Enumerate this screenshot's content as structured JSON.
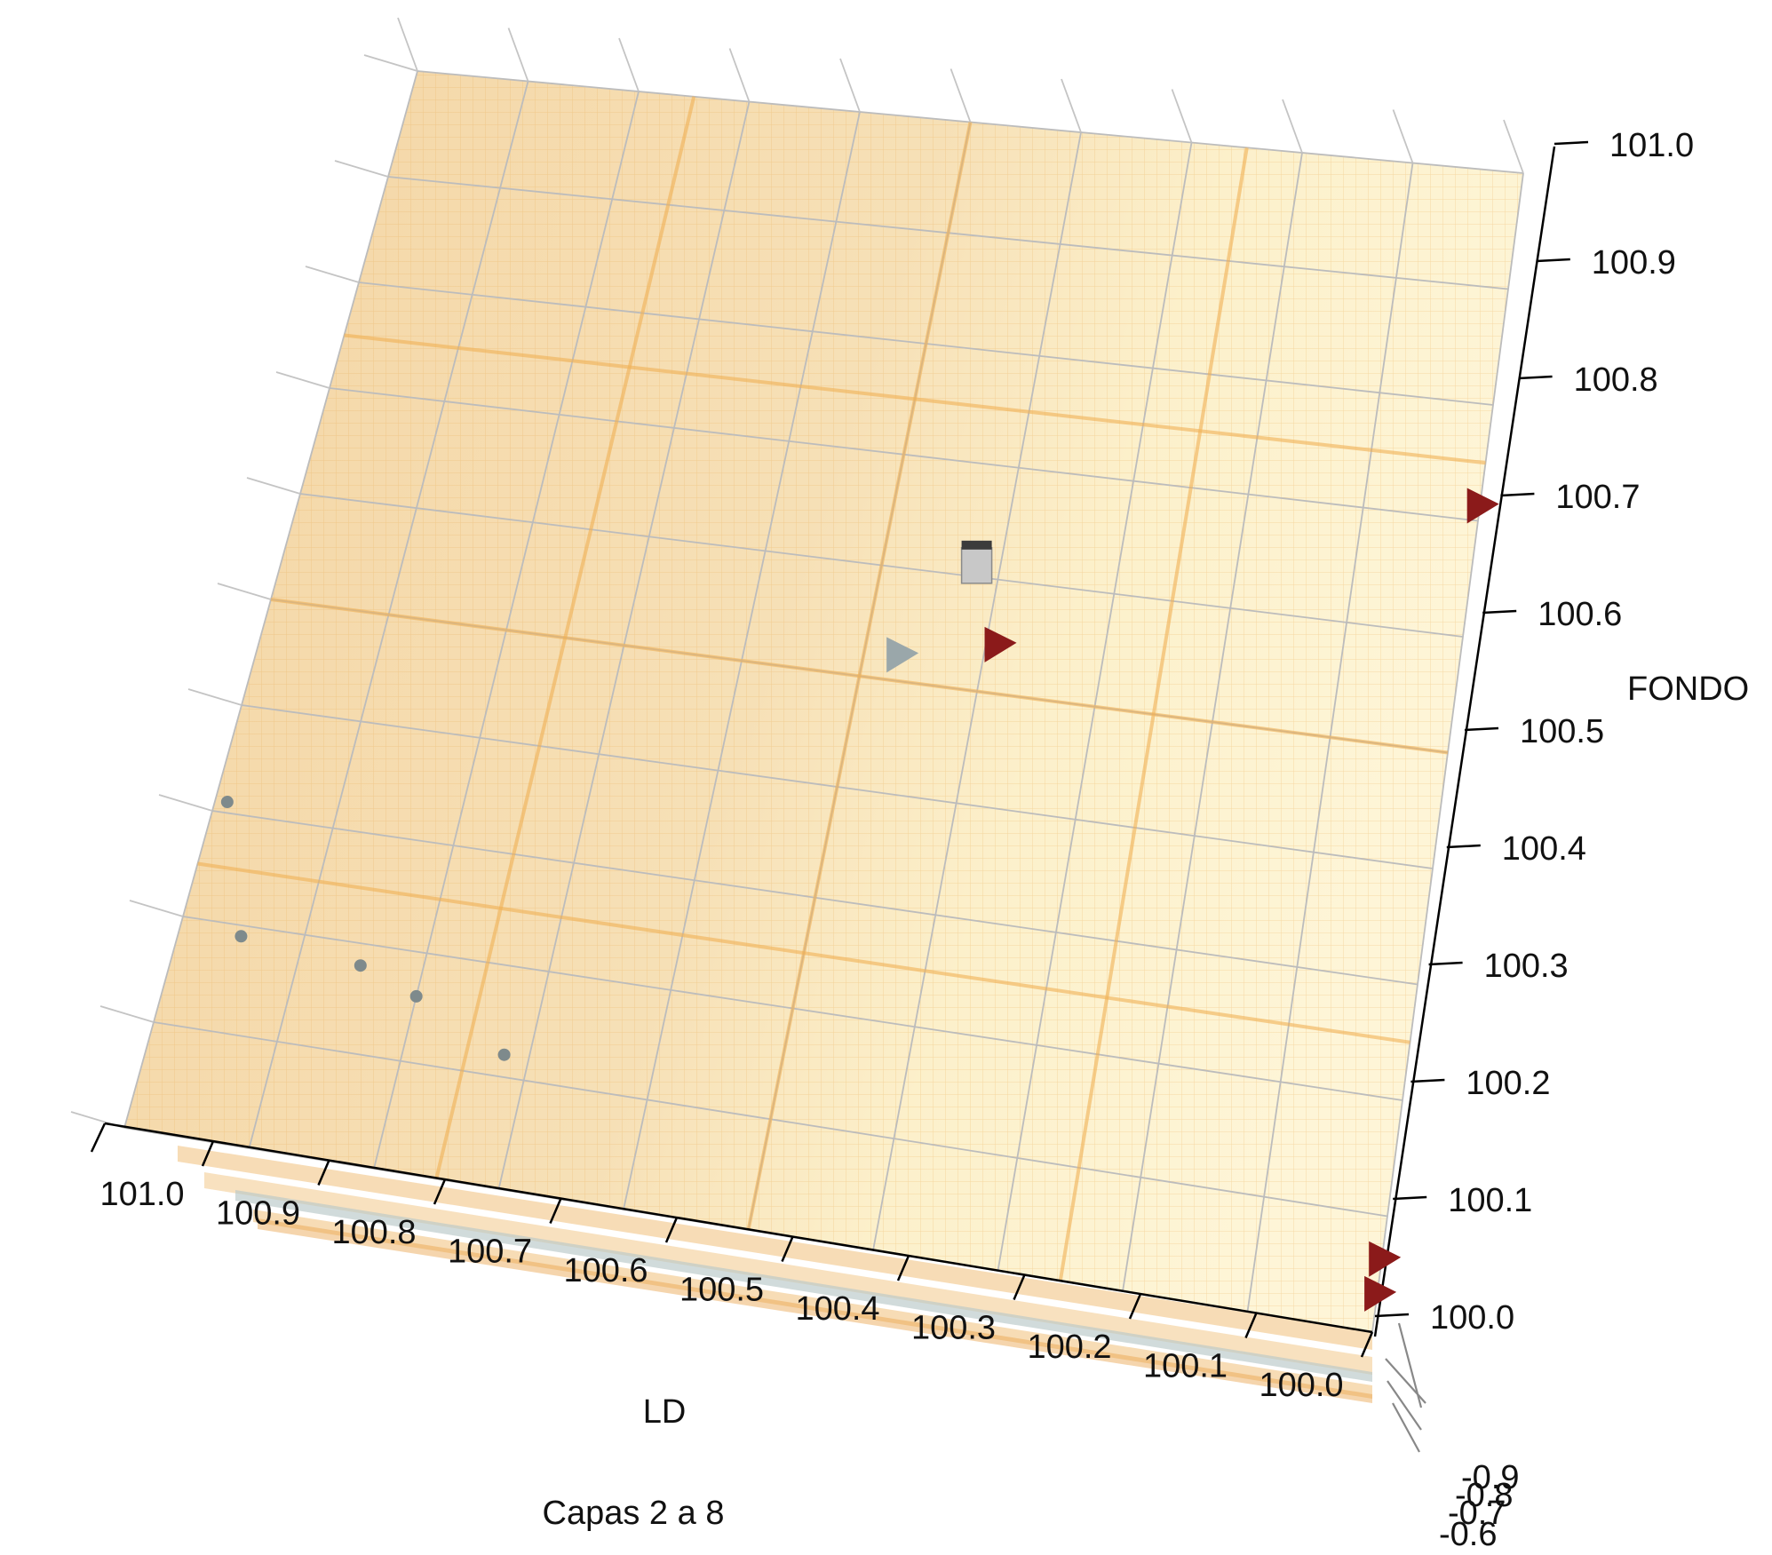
{
  "chart_data": {
    "type": "scatter",
    "subtype": "3d-perspective",
    "caption": "Capas 2 a 8",
    "axes": {
      "ld": {
        "label": "LD",
        "range": [
          100.0,
          101.0
        ],
        "ticks": [
          "101.0",
          "100.9",
          "100.8",
          "100.7",
          "100.6",
          "100.5",
          "100.4",
          "100.3",
          "100.2",
          "100.1",
          "100.0"
        ]
      },
      "fondo": {
        "label": "FONDO",
        "range": [
          100.0,
          101.0
        ],
        "ticks": [
          "100.0",
          "100.1",
          "100.2",
          "100.3",
          "100.4",
          "100.5",
          "100.6",
          "100.7",
          "100.8",
          "100.9",
          "101.0"
        ]
      },
      "depth": {
        "label": "",
        "ticks": [
          "-0.9",
          "-0.8",
          "-0.7",
          "-0.6"
        ]
      }
    },
    "grid": true,
    "layers": "Capas 2 a 8",
    "surface_color": "#f3c97a",
    "markers": [
      {
        "kind": "cube",
        "ld": 100.42,
        "fondo": 100.61,
        "color": "#c8c8c8"
      },
      {
        "kind": "pyramid",
        "ld": 100.39,
        "fondo": 100.54,
        "color": "#8b1a1a"
      },
      {
        "kind": "pyramid",
        "ld": 100.47,
        "fondo": 100.52,
        "color": "#9aa7aa"
      },
      {
        "kind": "pyramid",
        "ld": 100.0,
        "fondo": 100.71,
        "color": "#8b1a1a"
      },
      {
        "kind": "pyramid",
        "ld": 100.0,
        "fondo": 100.06,
        "color": "#8b1a1a"
      },
      {
        "kind": "pyramid",
        "ld": 100.0,
        "fondo": 100.03,
        "color": "#8b1a1a"
      },
      {
        "kind": "dot",
        "ld": 100.99,
        "fondo": 100.31,
        "color": "#7e8a8c"
      },
      {
        "kind": "dot",
        "ld": 100.95,
        "fondo": 100.19,
        "color": "#7e8a8c"
      },
      {
        "kind": "dot",
        "ld": 100.85,
        "fondo": 100.18,
        "color": "#7e8a8c"
      },
      {
        "kind": "dot",
        "ld": 100.8,
        "fondo": 100.16,
        "color": "#7e8a8c"
      },
      {
        "kind": "dot",
        "ld": 100.72,
        "fondo": 100.12,
        "color": "#7e8a8c"
      }
    ]
  }
}
